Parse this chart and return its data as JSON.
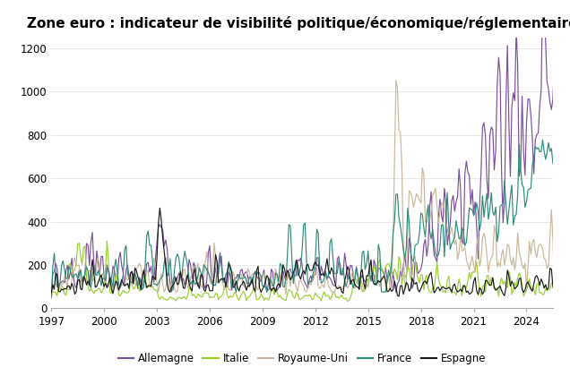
{
  "title": "Zone euro : indicateur de visibilité politique/économique/réglementaire",
  "title_fontsize": 11,
  "xlim": [
    1997.0,
    2025.5
  ],
  "ylim": [
    0,
    1250
  ],
  "yticks": [
    0,
    200,
    400,
    600,
    800,
    1000,
    1200
  ],
  "xticks": [
    1997,
    2000,
    2003,
    2006,
    2009,
    2012,
    2015,
    2018,
    2021,
    2024
  ],
  "colors": {
    "Allemagne": "#7b4f9e",
    "Italie": "#9acd32",
    "Royaume-Uni": "#c8b89a",
    "France": "#2e8b7a",
    "Espagne": "#1a1a1a"
  },
  "legend_labels": [
    "Allemagne",
    "Italie",
    "Royaume-Uni",
    "France",
    "Espagne"
  ],
  "background_color": "#ffffff",
  "linewidth": 0.85
}
